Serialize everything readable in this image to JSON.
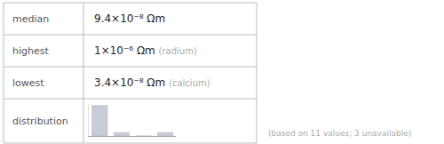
{
  "chart_data": {
    "type": "bar",
    "annotations": [
      [
        "median",
        "9.4×10⁻⁸ Ωm"
      ],
      [
        "highest",
        "1×10⁻⁶ Ωm",
        "(radium)"
      ],
      [
        "lowest",
        "3.4×10⁻⁸ Ωm",
        "(calcium)"
      ],
      [
        "distribution"
      ],
      "(based on 11 values; 3 unavailable)"
    ],
    "categories": [
      null,
      null,
      null,
      null
    ],
    "values": [
      9,
      1,
      0,
      1
    ],
    "color": "#c8ccd8",
    "ylim": [
      0,
      9.45
    ],
    "yticks": [],
    "tick_labels": false,
    "grid": false
  }
}
